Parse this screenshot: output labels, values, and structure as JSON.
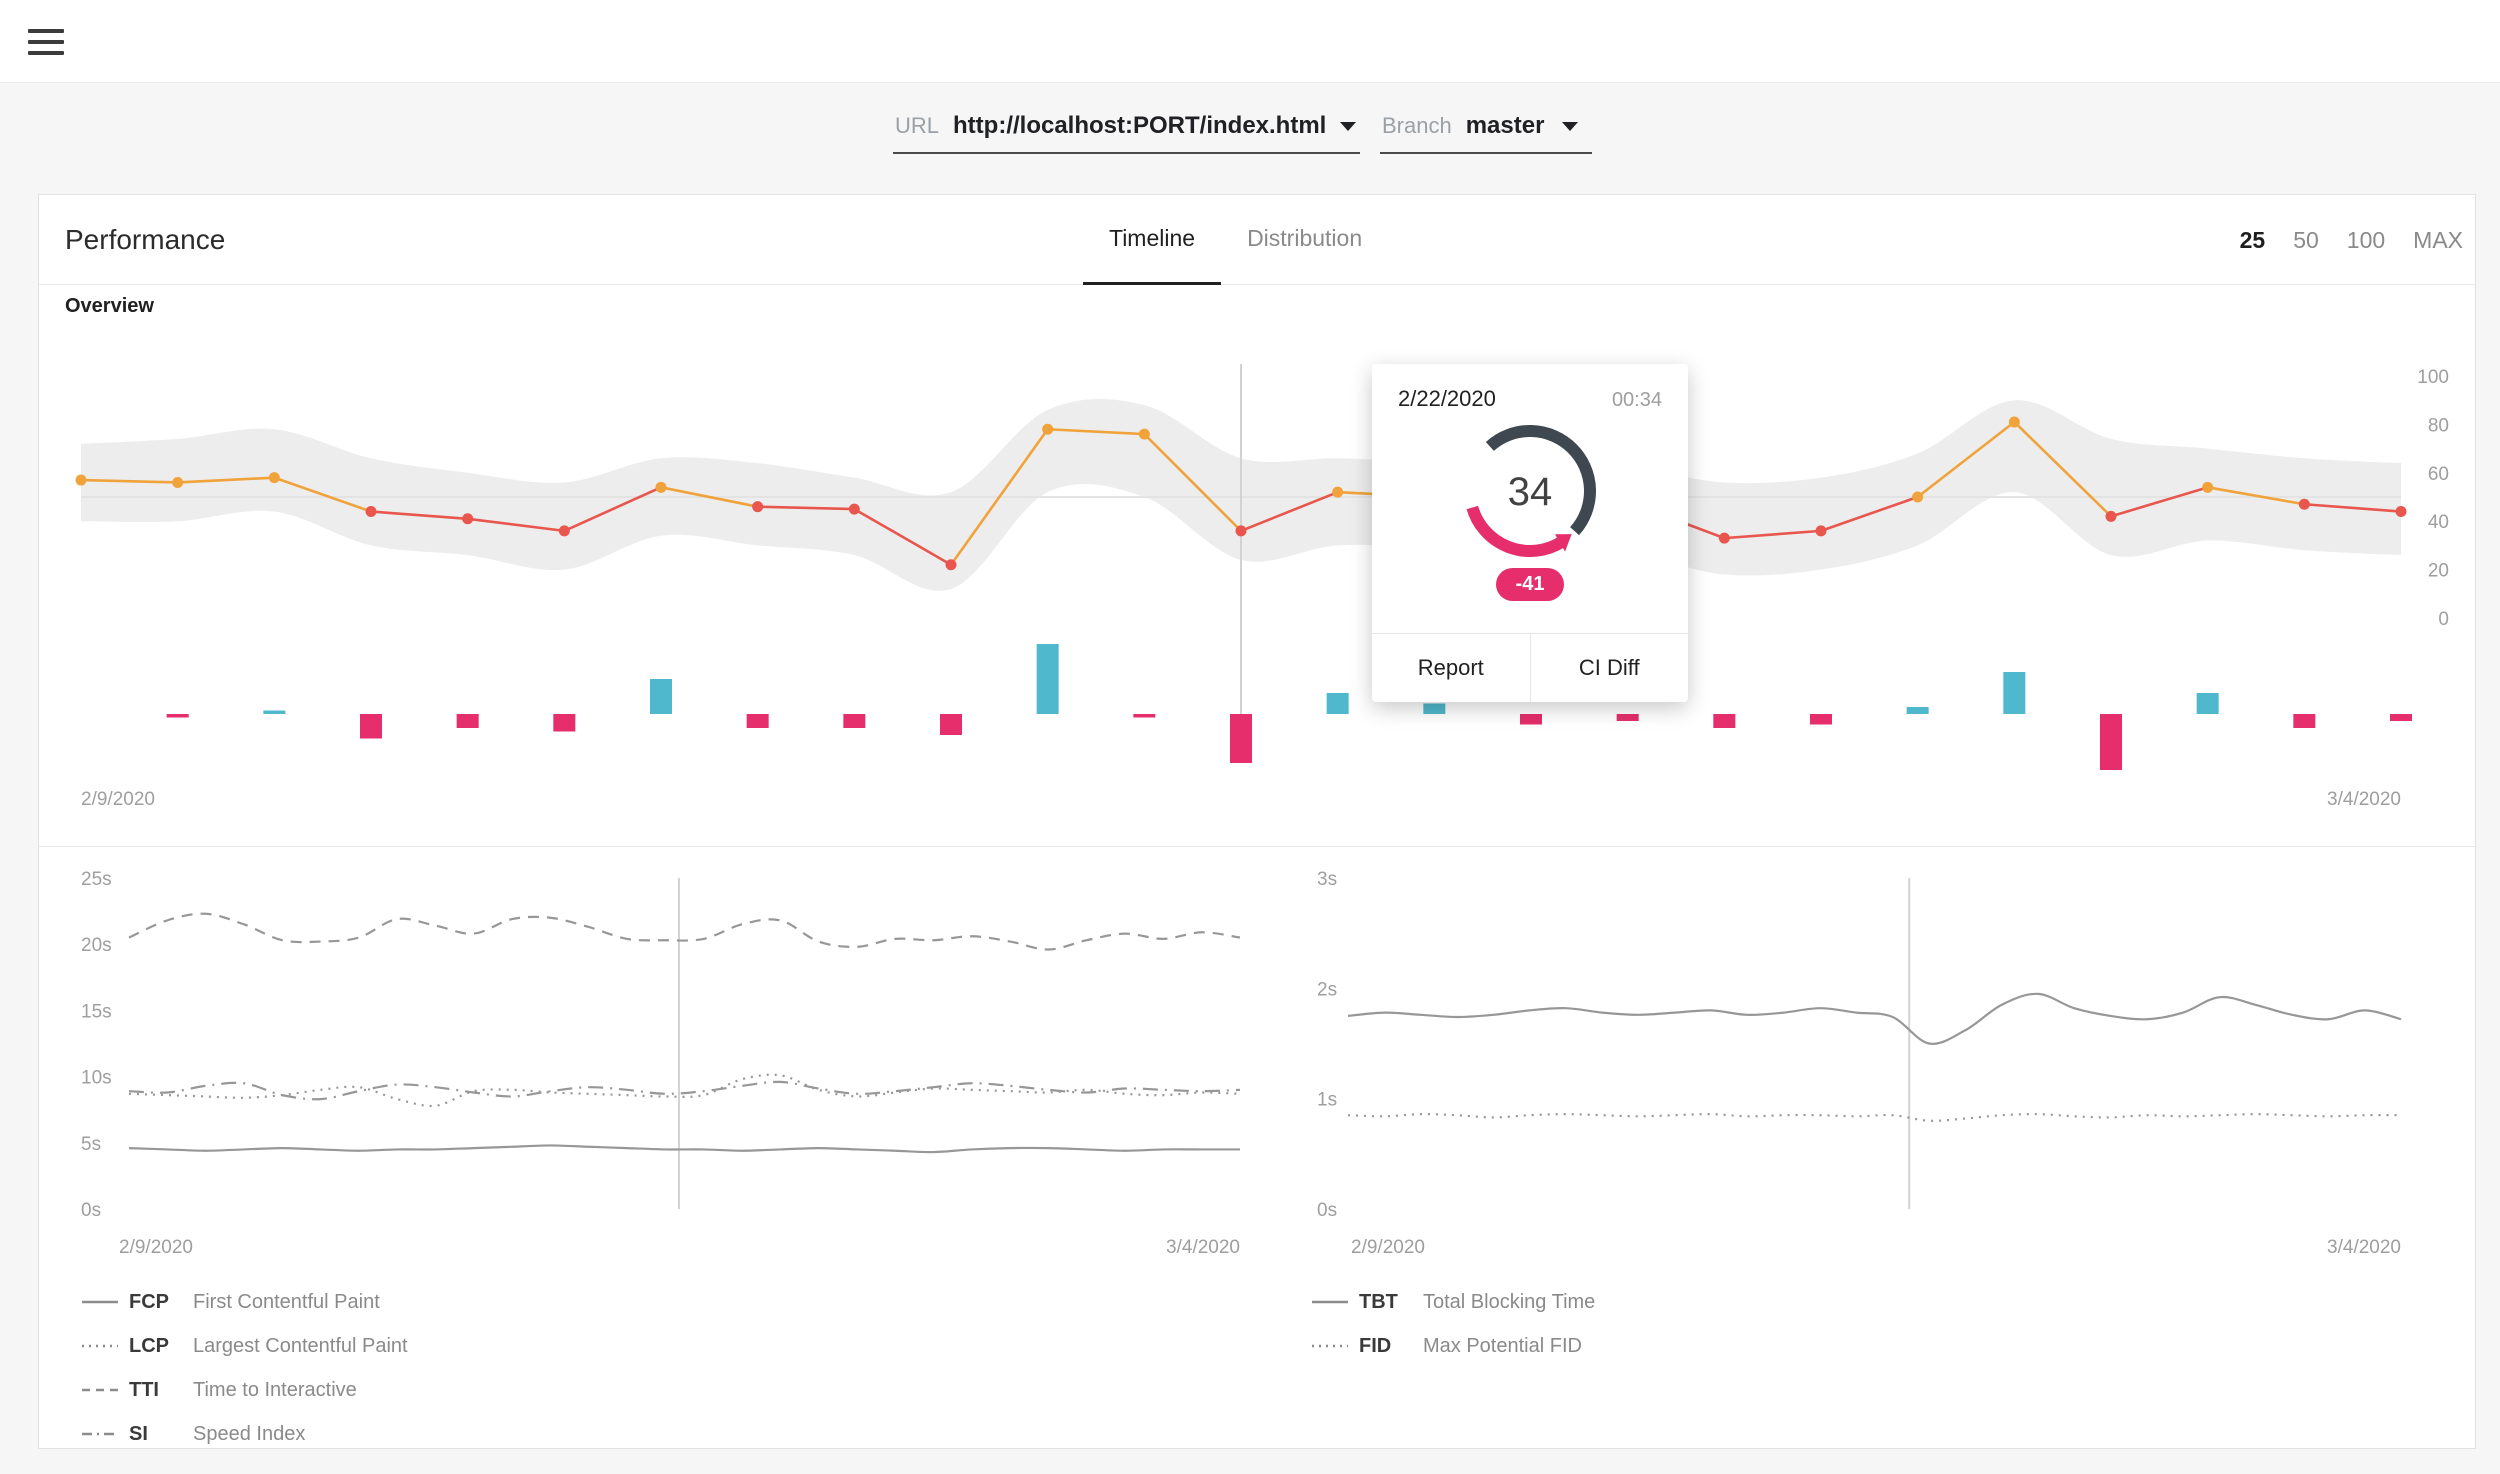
{
  "selectors": {
    "url_label": "URL",
    "url_value": "http://localhost:PORT/index.html",
    "branch_label": "Branch",
    "branch_value": "master"
  },
  "performance_card": {
    "title": "Performance",
    "tabs": [
      {
        "label": "Timeline",
        "active": true
      },
      {
        "label": "Distribution",
        "active": false
      }
    ],
    "limits": [
      {
        "label": "25",
        "active": true
      },
      {
        "label": "50",
        "active": false
      },
      {
        "label": "100",
        "active": false
      },
      {
        "label": "MAX",
        "active": false
      }
    ],
    "overview_label": "Overview"
  },
  "tooltip": {
    "date": "2/22/2020",
    "time": "00:34",
    "score": "34",
    "delta": "-41",
    "actions": [
      {
        "label": "Report"
      },
      {
        "label": "CI Diff"
      }
    ]
  },
  "colors": {
    "orange": "#f0a33a",
    "red": "#e8564e",
    "teal": "#4fb8cc",
    "pink": "#e52e6b",
    "band": "#ededed",
    "grid": "#e3e3e3",
    "marker": "#d2d2d2",
    "axis_text": "#9e9e9e",
    "metric_line": "#979797",
    "gauge_track": "#3f4850"
  },
  "chart_data": [
    {
      "name": "performance-score-overview",
      "type": "line",
      "title": "Overview",
      "x_start_label": "2/9/2020",
      "x_end_label": "3/4/2020",
      "y_ticks": [
        100,
        80,
        60,
        40,
        20,
        0
      ],
      "ylim": [
        0,
        100
      ],
      "threshold_line": 50,
      "selected_index": 12,
      "hover_index": 15,
      "scores": [
        57,
        56,
        58,
        44,
        41,
        36,
        54,
        46,
        45,
        22,
        78,
        76,
        36,
        52,
        50,
        34,
        48,
        33,
        36,
        50,
        81,
        42,
        54,
        47,
        44
      ],
      "band_upper": [
        72,
        74,
        78,
        66,
        60,
        56,
        66,
        64,
        58,
        52,
        86,
        88,
        66,
        66,
        64,
        60,
        62,
        56,
        58,
        68,
        90,
        74,
        70,
        66,
        64
      ],
      "band_lower": [
        40,
        40,
        44,
        30,
        26,
        20,
        34,
        30,
        26,
        12,
        52,
        50,
        24,
        30,
        28,
        20,
        26,
        18,
        20,
        30,
        52,
        26,
        32,
        28,
        26
      ],
      "diffs": [
        0,
        -1,
        1,
        -7,
        -4,
        -5,
        10,
        -4,
        -4,
        -6,
        20,
        -1,
        -14,
        6,
        3,
        -3,
        -2,
        -4,
        -3,
        2,
        12,
        -16,
        6,
        -4,
        -2
      ]
    },
    {
      "name": "paint-metrics-timeline",
      "type": "line",
      "x_start_label": "2/9/2020",
      "x_end_label": "3/4/2020",
      "y_ticks": [
        "25s",
        "20s",
        "15s",
        "10s",
        "5s",
        "0s"
      ],
      "ylim": [
        0,
        25
      ],
      "marker_fraction": 0.495,
      "series": [
        {
          "name": "FCP",
          "label": "First Contentful Paint",
          "dash": "solid",
          "values": [
            4.6,
            4.5,
            4.4,
            4.5,
            4.6,
            4.5,
            4.4,
            4.5,
            4.5,
            4.6,
            4.7,
            4.8,
            4.7,
            4.6,
            4.5,
            4.5,
            4.4,
            4.5,
            4.6,
            4.5,
            4.4,
            4.3,
            4.5,
            4.6,
            4.6,
            4.5,
            4.4,
            4.5,
            4.5,
            4.5
          ]
        },
        {
          "name": "LCP",
          "label": "Largest Contentful Paint",
          "dash": "dotted",
          "values": [
            8.7,
            8.6,
            8.5,
            8.4,
            8.6,
            9.0,
            9.2,
            8.3,
            7.8,
            8.9,
            9.0,
            8.8,
            8.7,
            8.6,
            8.5,
            8.6,
            9.8,
            10.1,
            9.0,
            8.5,
            8.8,
            9.1,
            9.0,
            8.9,
            8.8,
            9.0,
            8.7,
            8.6,
            8.8,
            8.7
          ]
        },
        {
          "name": "TTI",
          "label": "Time to Interactive",
          "dash": "dashed",
          "values": [
            20.5,
            21.8,
            22.3,
            21.5,
            20.3,
            20.2,
            20.5,
            21.9,
            21.4,
            20.8,
            21.9,
            22.0,
            21.3,
            20.4,
            20.3,
            20.4,
            21.5,
            21.8,
            20.2,
            19.8,
            20.4,
            20.3,
            20.6,
            20.2,
            19.6,
            20.3,
            20.8,
            20.4,
            20.9,
            20.5
          ]
        },
        {
          "name": "SI",
          "label": "Speed Index",
          "dash": "dashdot",
          "values": [
            8.9,
            8.8,
            9.3,
            9.5,
            8.6,
            8.3,
            8.9,
            9.4,
            9.2,
            8.8,
            8.5,
            8.9,
            9.2,
            9.0,
            8.7,
            8.9,
            9.3,
            9.6,
            9.1,
            8.7,
            8.9,
            9.2,
            9.5,
            9.3,
            9.0,
            8.8,
            9.1,
            9.0,
            8.9,
            9.0
          ]
        }
      ]
    },
    {
      "name": "blocking-metrics-timeline",
      "type": "line",
      "x_start_label": "2/9/2020",
      "x_end_label": "3/4/2020",
      "y_ticks": [
        "3s",
        "2s",
        "1s",
        "0s"
      ],
      "ylim": [
        0,
        3
      ],
      "marker_fraction": 0.533,
      "series": [
        {
          "name": "TBT",
          "label": "Total Blocking Time",
          "dash": "solid",
          "values": [
            1.75,
            1.78,
            1.76,
            1.74,
            1.76,
            1.8,
            1.82,
            1.78,
            1.76,
            1.78,
            1.8,
            1.76,
            1.78,
            1.82,
            1.78,
            1.74,
            1.5,
            1.62,
            1.85,
            1.95,
            1.82,
            1.75,
            1.72,
            1.78,
            1.92,
            1.85,
            1.76,
            1.72,
            1.8,
            1.72
          ]
        },
        {
          "name": "FID",
          "label": "Max Potential FID",
          "dash": "dotted",
          "values": [
            0.85,
            0.84,
            0.86,
            0.85,
            0.83,
            0.85,
            0.86,
            0.85,
            0.84,
            0.85,
            0.86,
            0.84,
            0.85,
            0.85,
            0.84,
            0.85,
            0.8,
            0.82,
            0.85,
            0.86,
            0.84,
            0.83,
            0.85,
            0.84,
            0.85,
            0.86,
            0.85,
            0.84,
            0.85,
            0.85
          ]
        }
      ]
    }
  ]
}
